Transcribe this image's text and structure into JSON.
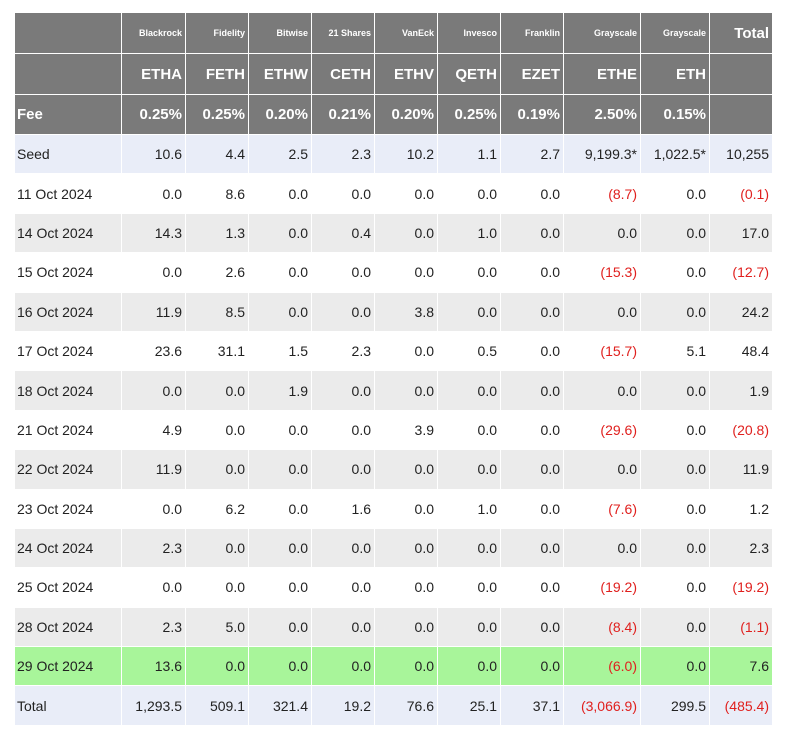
{
  "header": {
    "issuers": [
      "",
      "Blackrock",
      "Fidelity",
      "Bitwise",
      "21 Shares",
      "VanEck",
      "Invesco",
      "Franklin",
      "Grayscale",
      "Grayscale",
      "Total"
    ],
    "tickers": [
      "",
      "ETHA",
      "FETH",
      "ETHW",
      "CETH",
      "ETHV",
      "QETH",
      "EZET",
      "ETHE",
      "ETH",
      ""
    ],
    "fees": [
      "Fee",
      "0.25%",
      "0.25%",
      "0.20%",
      "0.21%",
      "0.20%",
      "0.25%",
      "0.19%",
      "2.50%",
      "0.15%",
      ""
    ]
  },
  "rows": [
    {
      "style": "seed",
      "cells": [
        "Seed",
        "10.6",
        "4.4",
        "2.5",
        "2.3",
        "10.2",
        "1.1",
        "2.7",
        "9,199.3*",
        "1,022.5*",
        "10,255"
      ]
    },
    {
      "style": "odd",
      "cells": [
        "11 Oct 2024",
        "0.0",
        "8.6",
        "0.0",
        "0.0",
        "0.0",
        "0.0",
        "0.0",
        "(8.7)",
        "0.0",
        "(0.1)"
      ]
    },
    {
      "style": "even",
      "cells": [
        "14 Oct 2024",
        "14.3",
        "1.3",
        "0.0",
        "0.4",
        "0.0",
        "1.0",
        "0.0",
        "0.0",
        "0.0",
        "17.0"
      ]
    },
    {
      "style": "odd",
      "cells": [
        "15 Oct 2024",
        "0.0",
        "2.6",
        "0.0",
        "0.0",
        "0.0",
        "0.0",
        "0.0",
        "(15.3)",
        "0.0",
        "(12.7)"
      ]
    },
    {
      "style": "even",
      "cells": [
        "16 Oct 2024",
        "11.9",
        "8.5",
        "0.0",
        "0.0",
        "3.8",
        "0.0",
        "0.0",
        "0.0",
        "0.0",
        "24.2"
      ]
    },
    {
      "style": "odd",
      "cells": [
        "17 Oct 2024",
        "23.6",
        "31.1",
        "1.5",
        "2.3",
        "0.0",
        "0.5",
        "0.0",
        "(15.7)",
        "5.1",
        "48.4"
      ]
    },
    {
      "style": "even",
      "cells": [
        "18 Oct 2024",
        "0.0",
        "0.0",
        "1.9",
        "0.0",
        "0.0",
        "0.0",
        "0.0",
        "0.0",
        "0.0",
        "1.9"
      ]
    },
    {
      "style": "odd",
      "cells": [
        "21 Oct 2024",
        "4.9",
        "0.0",
        "0.0",
        "0.0",
        "3.9",
        "0.0",
        "0.0",
        "(29.6)",
        "0.0",
        "(20.8)"
      ]
    },
    {
      "style": "even",
      "cells": [
        "22 Oct 2024",
        "11.9",
        "0.0",
        "0.0",
        "0.0",
        "0.0",
        "0.0",
        "0.0",
        "0.0",
        "0.0",
        "11.9"
      ]
    },
    {
      "style": "odd",
      "cells": [
        "23 Oct 2024",
        "0.0",
        "6.2",
        "0.0",
        "1.6",
        "0.0",
        "1.0",
        "0.0",
        "(7.6)",
        "0.0",
        "1.2"
      ]
    },
    {
      "style": "even",
      "cells": [
        "24 Oct 2024",
        "2.3",
        "0.0",
        "0.0",
        "0.0",
        "0.0",
        "0.0",
        "0.0",
        "0.0",
        "0.0",
        "2.3"
      ]
    },
    {
      "style": "odd",
      "cells": [
        "25 Oct 2024",
        "0.0",
        "0.0",
        "0.0",
        "0.0",
        "0.0",
        "0.0",
        "0.0",
        "(19.2)",
        "0.0",
        "(19.2)"
      ]
    },
    {
      "style": "even",
      "cells": [
        "28 Oct 2024",
        "2.3",
        "5.0",
        "0.0",
        "0.0",
        "0.0",
        "0.0",
        "0.0",
        "(8.4)",
        "0.0",
        "(1.1)"
      ]
    },
    {
      "style": "hl",
      "cells": [
        "29 Oct 2024",
        "13.6",
        "0.0",
        "0.0",
        "0.0",
        "0.0",
        "0.0",
        "0.0",
        "(6.0)",
        "0.0",
        "7.6"
      ]
    },
    {
      "style": "total",
      "cells": [
        "Total",
        "1,293.5",
        "509.1",
        "321.4",
        "19.2",
        "76.6",
        "25.1",
        "37.1",
        "(3,066.9)",
        "299.5",
        "(485.4)"
      ]
    }
  ],
  "colors": {
    "header_bg": "#7a7a7a",
    "negative": "#e0201e",
    "highlight_row": "#a8f59a",
    "seed_total_row": "#e9edf8",
    "stripe": "#ebebeb"
  }
}
